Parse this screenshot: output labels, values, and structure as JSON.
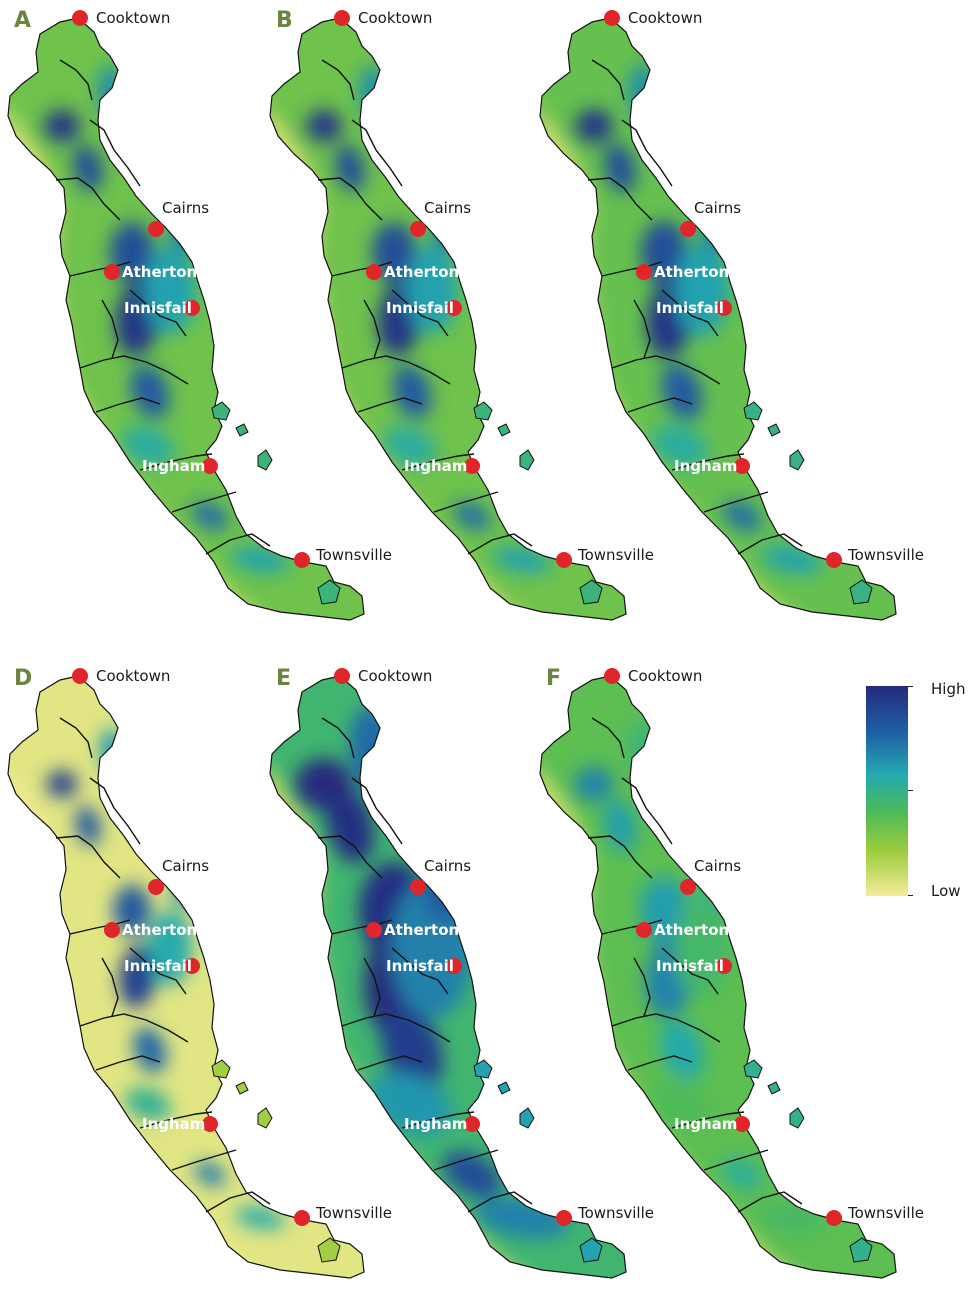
{
  "panels": [
    {
      "letter": "A",
      "variant": "base"
    },
    {
      "letter": "B",
      "variant": "base"
    },
    {
      "letter": "",
      "variant": "wide"
    },
    {
      "letter": "D",
      "variant": "low"
    },
    {
      "letter": "E",
      "variant": "high"
    },
    {
      "letter": "F",
      "variant": "mid"
    }
  ],
  "towns": [
    {
      "name": "Cooktown"
    },
    {
      "name": "Cairns"
    },
    {
      "name": "Atherton"
    },
    {
      "name": "Innisfail"
    },
    {
      "name": "Ingham"
    },
    {
      "name": "Townsville"
    }
  ],
  "legend": {
    "high": "High",
    "low": "Low"
  },
  "colors": {
    "marker": "#e0262b",
    "panel_letter": "#6b8540",
    "low": "#f6ec98",
    "mid": "#4cba58",
    "high": "#252a7d"
  }
}
